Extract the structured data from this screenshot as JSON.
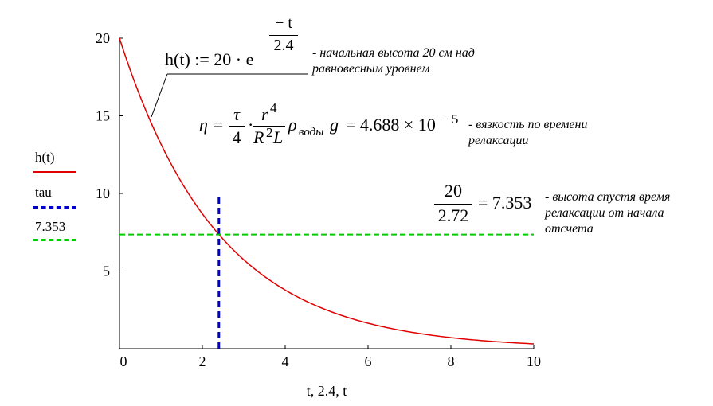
{
  "chart_data": {
    "type": "line",
    "x_axis": {
      "min": 0,
      "max": 10,
      "ticks": [
        0,
        2,
        4,
        6,
        8,
        10
      ],
      "label": "t, 2.4, t"
    },
    "y_axis": {
      "min": 0,
      "max": 20,
      "ticks": [
        5,
        10,
        15,
        20
      ]
    },
    "series": [
      {
        "name": "h(t)",
        "kind": "curve",
        "formula": "20*exp(-t/2.4)",
        "color": "#e00000",
        "style": "solid",
        "x": [
          0,
          1,
          2,
          3,
          4,
          5,
          6,
          7,
          8,
          9,
          10
        ],
        "values": [
          20,
          13.19,
          8.69,
          5.73,
          3.78,
          2.49,
          1.64,
          1.08,
          0.71,
          0.47,
          0.31
        ]
      },
      {
        "name": "tau",
        "kind": "vertical",
        "x": 2.4,
        "y_range": [
          0,
          10
        ],
        "color": "#0000cc",
        "style": "dashed"
      },
      {
        "name": "7.353",
        "kind": "horizontal",
        "y": 7.353,
        "x_range": [
          0,
          10
        ],
        "color": "#00cc00",
        "style": "dashed"
      }
    ],
    "legend_placement": "left"
  },
  "formula_h": {
    "lhs": "h(t) := 20 · e",
    "exp_num": "− t",
    "exp_den": "2.4",
    "note_line1": "- начальная высота 20 см над",
    "note_line2": "равновесным уровнем"
  },
  "formula_eta": {
    "eta": "η =",
    "tau": "τ",
    "four": "4",
    "dot": "·",
    "r": "r",
    "r_exp": "4",
    "R": "R",
    "R_exp": "2",
    "L": "L",
    "rho": "ρ",
    "rho_sub": "воды",
    "g": "g",
    "result": "= 4.688 × 10",
    "result_exp": "− 5",
    "note_line1": "- вязкость по времени",
    "note_line2": "релаксации"
  },
  "formula_ratio": {
    "num": "20",
    "den": "2.72",
    "result": "= 7.353",
    "note_line1": "- высота спустя время",
    "note_line2": "релаксации от начала",
    "note_line3": "отсчета"
  },
  "colors": {
    "curve": "#e00000",
    "tau": "#0000cc",
    "level": "#00cc00",
    "axis": "#000000"
  }
}
